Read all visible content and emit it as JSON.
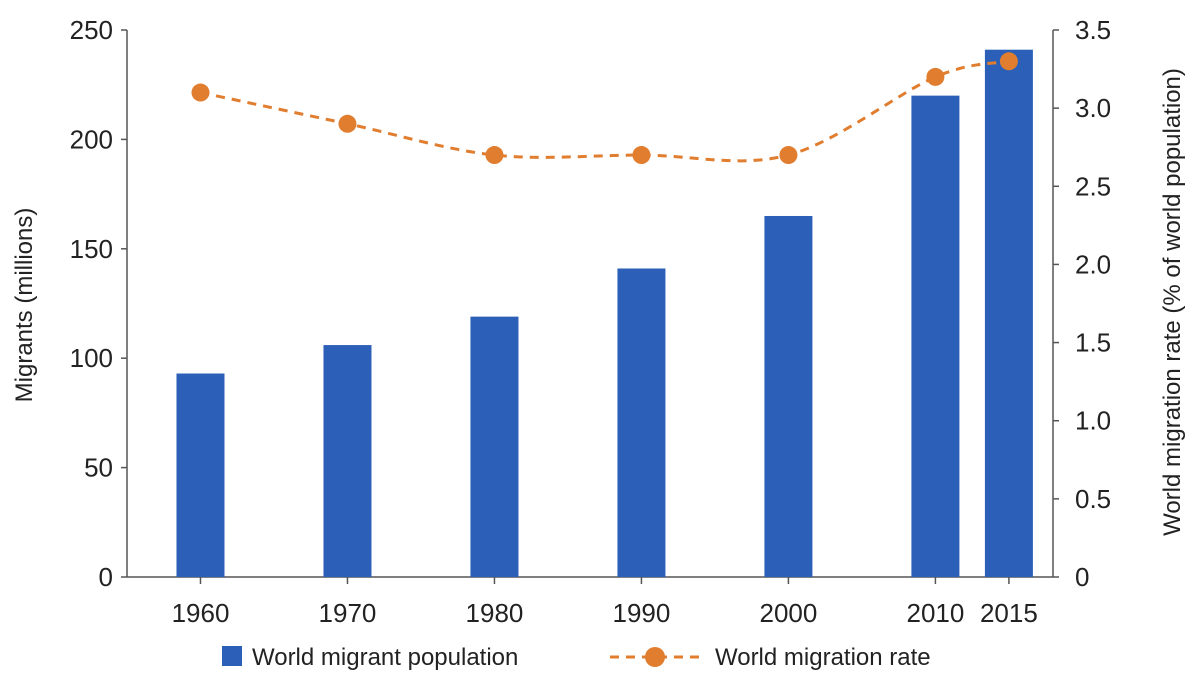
{
  "chart_data": {
    "type": "bar",
    "categories": [
      "1960",
      "1970",
      "1980",
      "1990",
      "2000",
      "2010",
      "2015"
    ],
    "x": [
      1960,
      1970,
      1980,
      1990,
      2000,
      2010,
      2015
    ],
    "series": [
      {
        "name": "World migrant population",
        "type": "bar",
        "axis": "left",
        "color": "#2b5fb8",
        "values": [
          93,
          106,
          119,
          141,
          165,
          220,
          241
        ]
      },
      {
        "name": "World migration rate",
        "type": "line",
        "axis": "right",
        "color": "#e07d2f",
        "line_style": "dashed",
        "marker": "circle",
        "values": [
          3.1,
          2.9,
          2.7,
          2.7,
          2.7,
          3.2,
          3.3
        ]
      }
    ],
    "ylabel": "Migrants (millions)",
    "ylim": [
      0,
      250
    ],
    "yticks": [
      "0",
      "50",
      "100",
      "150",
      "200",
      "250"
    ],
    "y2label": "World migration rate (% of world population)",
    "y2lim": [
      0,
      3.5
    ],
    "y2ticks": [
      "0",
      "0.5",
      "1.0",
      "1.5",
      "2.0",
      "2.5",
      "3.0",
      "3.5"
    ],
    "grid": false,
    "legend_position": "bottom"
  }
}
